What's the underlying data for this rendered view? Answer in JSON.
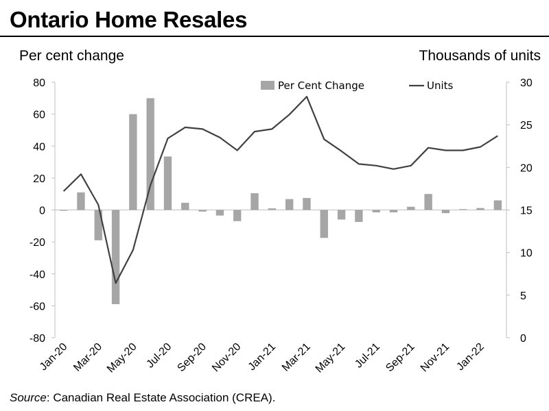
{
  "chart_data": {
    "type": "bar+line",
    "title": "Ontario Home Resales",
    "ylabel_left": "Per cent change",
    "ylabel_right": "Thousands of units",
    "ylim_left": [
      -80,
      80
    ],
    "ylim_right": [
      0,
      30
    ],
    "yticks_left": [
      "80",
      "60",
      "40",
      "20",
      "0",
      "-20",
      "-40",
      "-60",
      "-80"
    ],
    "yticks_right": [
      "30",
      "25",
      "20",
      "15",
      "10",
      "5",
      "0"
    ],
    "x": [
      "Jan-20",
      "Feb-20",
      "Mar-20",
      "Apr-20",
      "May-20",
      "Jun-20",
      "Jul-20",
      "Aug-20",
      "Sep-20",
      "Oct-20",
      "Nov-20",
      "Dec-20",
      "Jan-21",
      "Feb-21",
      "Mar-21",
      "Apr-21",
      "May-21",
      "Jun-21",
      "Jul-21",
      "Aug-21",
      "Sep-21",
      "Oct-21",
      "Nov-21",
      "Dec-21",
      "Jan-22",
      "Feb-22"
    ],
    "xtick_labels": [
      "Jan-20",
      "Mar-20",
      "May-20",
      "Jul-20",
      "Sep-20",
      "Nov-20",
      "Jan-21",
      "Mar-21",
      "May-21",
      "Jul-21",
      "Sep-21",
      "Nov-21",
      "Jan-22"
    ],
    "series": [
      {
        "name": "Per Cent Change",
        "type": "bar",
        "color": "#a6a6a6",
        "values": [
          -0.5,
          11,
          -19,
          -59,
          60,
          70,
          33.5,
          4.5,
          -1,
          -3.5,
          -7,
          10.5,
          1,
          6.8,
          7.5,
          -17.5,
          -6,
          -7.5,
          -1.5,
          -1.5,
          2,
          10,
          -2,
          0.5,
          1.2,
          6
        ]
      },
      {
        "name": "Units",
        "type": "line",
        "color": "#404040",
        "values": [
          17.2,
          19.2,
          15.6,
          6.4,
          10.3,
          17.9,
          23.4,
          24.7,
          24.5,
          23.5,
          22.0,
          24.2,
          24.5,
          26.2,
          28.3,
          23.3,
          21.9,
          20.4,
          20.2,
          19.8,
          20.2,
          22.3,
          22.0,
          22.0,
          22.4,
          23.7
        ]
      }
    ],
    "legend_placement": "top"
  },
  "source_label": "Source",
  "source_text": ": Canadian Real Estate Association (CREA)."
}
